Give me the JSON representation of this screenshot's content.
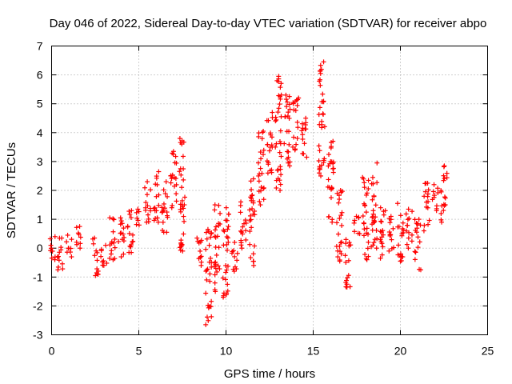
{
  "chart_data": {
    "type": "scatter",
    "title": "Day 046 of 2022, Sidereal Day-to-day VTEC variation (SDTVAR) for receiver abpo",
    "xlabel": "GPS time / hours",
    "ylabel": "SDTVAR / TECUs",
    "xlim": [
      0,
      25
    ],
    "ylim": [
      -3,
      7
    ],
    "xticks": [
      0,
      5,
      10,
      15,
      20,
      25
    ],
    "yticks": [
      -3,
      -2,
      -1,
      0,
      1,
      2,
      3,
      4,
      5,
      6,
      7
    ],
    "grid": true,
    "marker": "plus",
    "color": "#ff0000",
    "clusters": [
      {
        "x": 0.05,
        "ymin": -0.4,
        "ymax": 0.4
      },
      {
        "x": 0.5,
        "ymin": -0.75,
        "ymax": 0.35
      },
      {
        "x": 1.0,
        "ymin": -0.3,
        "ymax": 0.45
      },
      {
        "x": 1.5,
        "ymin": 0.0,
        "ymax": 0.75
      },
      {
        "x": 2.5,
        "ymin": -0.95,
        "ymax": 0.35
      },
      {
        "x": 3.0,
        "ymin": -0.6,
        "ymax": 0.1
      },
      {
        "x": 3.5,
        "ymin": -0.4,
        "ymax": 1.05
      },
      {
        "x": 4.0,
        "ymin": -0.3,
        "ymax": 1.05
      },
      {
        "x": 4.5,
        "ymin": -0.15,
        "ymax": 1.3
      },
      {
        "x": 5.0,
        "ymin": 0.8,
        "ymax": 1.35
      },
      {
        "x": 5.5,
        "ymin": 0.9,
        "ymax": 2.3
      },
      {
        "x": 6.0,
        "ymin": 0.9,
        "ymax": 2.65
      },
      {
        "x": 6.5,
        "ymin": 0.55,
        "ymax": 2.3
      },
      {
        "x": 7.0,
        "ymin": 1.4,
        "ymax": 3.35
      },
      {
        "x": 7.5,
        "ymin": -0.1,
        "ymax": 3.8
      },
      {
        "x": 8.5,
        "ymin": -0.6,
        "ymax": 0.35
      },
      {
        "x": 9.0,
        "ymin": -2.65,
        "ymax": 0.65
      },
      {
        "x": 9.5,
        "ymin": -1.5,
        "ymax": 1.5
      },
      {
        "x": 10.0,
        "ymin": -1.7,
        "ymax": 1.4
      },
      {
        "x": 10.5,
        "ymin": -0.8,
        "ymax": 0.2
      },
      {
        "x": 11.0,
        "ymin": 0.0,
        "ymax": 1.6
      },
      {
        "x": 11.5,
        "ymin": -0.6,
        "ymax": 2.4
      },
      {
        "x": 12.0,
        "ymin": 1.5,
        "ymax": 4.05
      },
      {
        "x": 12.5,
        "ymin": 2.6,
        "ymax": 4.7
      },
      {
        "x": 13.0,
        "ymin": 2.0,
        "ymax": 5.95
      },
      {
        "x": 13.5,
        "ymin": 2.85,
        "ymax": 5.3
      },
      {
        "x": 14.0,
        "ymin": 3.4,
        "ymax": 5.2
      },
      {
        "x": 14.5,
        "ymin": 3.15,
        "ymax": 4.5
      },
      {
        "x": 15.5,
        "ymin": 2.5,
        "ymax": 6.45
      },
      {
        "x": 16.0,
        "ymin": 0.9,
        "ymax": 3.7
      },
      {
        "x": 16.5,
        "ymin": -0.45,
        "ymax": 2.0
      },
      {
        "x": 17.0,
        "ymin": -1.35,
        "ymax": 0.3
      },
      {
        "x": 17.5,
        "ymin": 0.5,
        "ymax": 1.1
      },
      {
        "x": 18.0,
        "ymin": -0.4,
        "ymax": 2.45
      },
      {
        "x": 18.5,
        "ymin": 0.0,
        "ymax": 2.95
      },
      {
        "x": 19.0,
        "ymin": -0.35,
        "ymax": 1.4
      },
      {
        "x": 19.5,
        "ymin": -0.1,
        "ymax": 1.1
      },
      {
        "x": 20.0,
        "ymin": -0.45,
        "ymax": 1.55
      },
      {
        "x": 20.5,
        "ymin": 0.0,
        "ymax": 1.35
      },
      {
        "x": 21.0,
        "ymin": -0.75,
        "ymax": 1.0
      },
      {
        "x": 21.5,
        "ymin": 0.6,
        "ymax": 2.25
      },
      {
        "x": 22.0,
        "ymin": 1.3,
        "ymax": 2.2
      },
      {
        "x": 22.5,
        "ymin": 0.9,
        "ymax": 2.85
      }
    ]
  }
}
